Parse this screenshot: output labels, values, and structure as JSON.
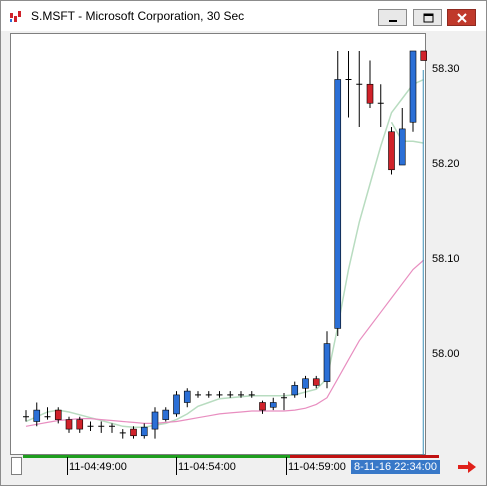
{
  "window": {
    "title": "S.MSFT - Microsoft Corporation, 30 Sec",
    "icon": "chart-app-icon",
    "controls": [
      "minimize-icon",
      "restore-icon",
      "close-icon"
    ]
  },
  "colors": {
    "up_candle": "#2b6fd6",
    "down_candle": "#d0222a",
    "doji": "#000000",
    "ma_fast": "#b8dcc0",
    "ma_slow": "#e88ec0",
    "cursor_line": "#3b8fb7",
    "cursor_label": "#3878c8",
    "volume_green": "#1e9e1e",
    "volume_red": "#c01010",
    "arrow": "#e0201a"
  },
  "y_axis": {
    "ticks": [
      "58.30",
      "58.20",
      "58.10",
      "58.00"
    ]
  },
  "x_axis": {
    "ticks": [
      "11-04:49:00",
      "11-04:54:00",
      "11-04:59:00"
    ],
    "cursor_label": "8-11-16 22:34:00"
  },
  "chart_data": {
    "type": "candlestick",
    "title": "",
    "ylim": [
      57.92,
      58.34
    ],
    "candles": [
      {
        "o": 57.935,
        "h": 57.942,
        "l": 57.93,
        "c": 57.935,
        "dir": "flat"
      },
      {
        "o": 57.93,
        "h": 57.95,
        "l": 57.925,
        "c": 57.942,
        "dir": "up"
      },
      {
        "o": 57.935,
        "h": 57.945,
        "l": 57.932,
        "c": 57.935,
        "dir": "flat"
      },
      {
        "o": 57.942,
        "h": 57.945,
        "l": 57.928,
        "c": 57.932,
        "dir": "down"
      },
      {
        "o": 57.932,
        "h": 57.935,
        "l": 57.918,
        "c": 57.922,
        "dir": "down"
      },
      {
        "o": 57.932,
        "h": 57.935,
        "l": 57.918,
        "c": 57.922,
        "dir": "down"
      },
      {
        "o": 57.925,
        "h": 57.93,
        "l": 57.92,
        "c": 57.925,
        "dir": "flat"
      },
      {
        "o": 57.925,
        "h": 57.93,
        "l": 57.918,
        "c": 57.925,
        "dir": "flat"
      },
      {
        "o": 57.925,
        "h": 57.928,
        "l": 57.918,
        "c": 57.925,
        "dir": "flat"
      },
      {
        "o": 57.918,
        "h": 57.922,
        "l": 57.912,
        "c": 57.918,
        "dir": "flat"
      },
      {
        "o": 57.922,
        "h": 57.925,
        "l": 57.912,
        "c": 57.915,
        "dir": "down"
      },
      {
        "o": 57.915,
        "h": 57.928,
        "l": 57.912,
        "c": 57.924,
        "dir": "up"
      },
      {
        "o": 57.922,
        "h": 57.945,
        "l": 57.912,
        "c": 57.94,
        "dir": "up"
      },
      {
        "o": 57.932,
        "h": 57.945,
        "l": 57.93,
        "c": 57.942,
        "dir": "up"
      },
      {
        "o": 57.938,
        "h": 57.962,
        "l": 57.935,
        "c": 57.958,
        "dir": "up"
      },
      {
        "o": 57.95,
        "h": 57.965,
        "l": 57.945,
        "c": 57.962,
        "dir": "up"
      },
      {
        "o": 57.958,
        "h": 57.962,
        "l": 57.955,
        "c": 57.958,
        "dir": "flat"
      },
      {
        "o": 57.958,
        "h": 57.962,
        "l": 57.955,
        "c": 57.958,
        "dir": "flat"
      },
      {
        "o": 57.958,
        "h": 57.962,
        "l": 57.955,
        "c": 57.958,
        "dir": "flat"
      },
      {
        "o": 57.958,
        "h": 57.962,
        "l": 57.955,
        "c": 57.958,
        "dir": "flat"
      },
      {
        "o": 57.958,
        "h": 57.962,
        "l": 57.955,
        "c": 57.958,
        "dir": "flat"
      },
      {
        "o": 57.958,
        "h": 57.962,
        "l": 57.955,
        "c": 57.958,
        "dir": "flat"
      },
      {
        "o": 57.95,
        "h": 57.952,
        "l": 57.938,
        "c": 57.942,
        "dir": "down"
      },
      {
        "o": 57.945,
        "h": 57.955,
        "l": 57.942,
        "c": 57.95,
        "dir": "up"
      },
      {
        "o": 57.955,
        "h": 57.96,
        "l": 57.942,
        "c": 57.952,
        "dir": "flat"
      },
      {
        "o": 57.958,
        "h": 57.972,
        "l": 57.955,
        "c": 57.968,
        "dir": "up"
      },
      {
        "o": 57.965,
        "h": 57.978,
        "l": 57.955,
        "c": 57.975,
        "dir": "up"
      },
      {
        "o": 57.975,
        "h": 57.978,
        "l": 57.965,
        "c": 57.968,
        "dir": "down"
      },
      {
        "o": 57.972,
        "h": 58.025,
        "l": 57.965,
        "c": 58.012,
        "dir": "up"
      },
      {
        "o": 58.028,
        "h": 58.32,
        "l": 58.02,
        "c": 58.29,
        "dir": "up"
      },
      {
        "o": 58.29,
        "h": 58.32,
        "l": 58.25,
        "c": 58.29,
        "dir": "flat"
      },
      {
        "o": 58.285,
        "h": 58.32,
        "l": 58.24,
        "c": 58.285,
        "dir": "flat"
      },
      {
        "o": 58.285,
        "h": 58.31,
        "l": 58.26,
        "c": 58.265,
        "dir": "down"
      },
      {
        "o": 58.265,
        "h": 58.285,
        "l": 58.24,
        "c": 58.265,
        "dir": "flat"
      },
      {
        "o": 58.235,
        "h": 58.24,
        "l": 58.19,
        "c": 58.195,
        "dir": "down"
      },
      {
        "o": 58.2,
        "h": 58.26,
        "l": 58.2,
        "c": 58.238,
        "dir": "up"
      },
      {
        "o": 58.245,
        "h": 58.32,
        "l": 58.235,
        "c": 58.32,
        "dir": "up"
      },
      {
        "o": 58.32,
        "h": 58.32,
        "l": 58.31,
        "c": 58.31,
        "dir": "down"
      }
    ],
    "ma_fast": [
      57.93,
      57.935,
      57.94,
      57.942,
      57.94,
      57.937,
      57.934,
      57.931,
      57.928,
      57.925,
      57.924,
      57.924,
      57.926,
      57.928,
      57.932,
      57.938,
      57.946,
      57.95,
      57.954,
      57.955,
      57.956,
      57.957,
      57.957,
      57.957,
      57.957,
      57.958,
      57.961,
      57.964,
      57.975,
      58.03,
      58.09,
      58.14,
      58.18,
      58.22,
      58.255,
      58.27,
      58.285,
      58.29
    ],
    "ma_fast_tail": [
      58.305,
      58.285,
      58.285,
      58.283
    ],
    "ma_slow": [
      57.925,
      57.927,
      57.929,
      57.931,
      57.932,
      57.933,
      57.933,
      57.932,
      57.931,
      57.93,
      57.929,
      57.928,
      57.928,
      57.929,
      57.93,
      57.932,
      57.934,
      57.936,
      57.938,
      57.939,
      57.94,
      57.941,
      57.941,
      57.941,
      57.941,
      57.942,
      57.944,
      57.948,
      57.955,
      57.975,
      57.995,
      58.015,
      58.03,
      58.045,
      58.06,
      58.075,
      58.09,
      58.1
    ],
    "volume": [
      "green",
      "green",
      "green",
      "green",
      "green",
      "green",
      "green",
      "green",
      "green",
      "green",
      "green",
      "green",
      "green",
      "green",
      "green",
      "green",
      "green",
      "green",
      "green",
      "green",
      "green",
      "green",
      "green",
      "green",
      "green",
      "green",
      "green",
      "green",
      "green",
      "red",
      "red",
      "red",
      "red",
      "red",
      "red",
      "red",
      "red",
      "red"
    ]
  }
}
